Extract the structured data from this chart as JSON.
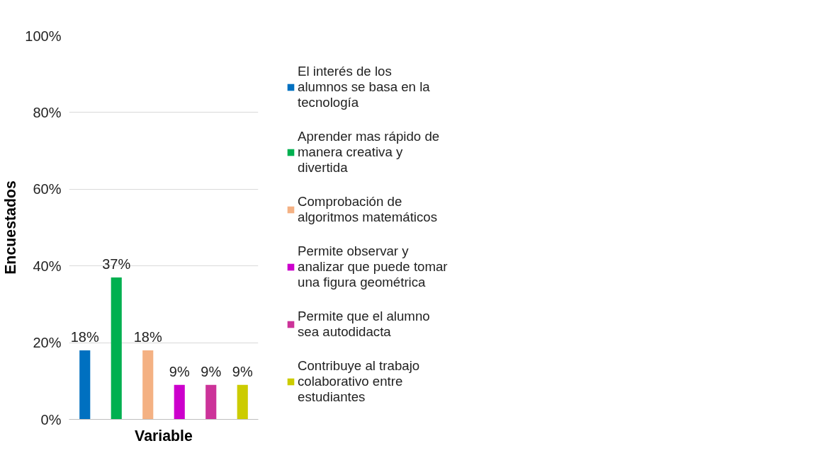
{
  "chart_data": {
    "type": "bar",
    "xlabel": "Variable",
    "ylabel": "Encuestados",
    "categories": [
      null,
      null,
      null,
      null,
      null,
      null
    ],
    "series": [
      {
        "name": "El interés de los alumnos se basa en la tecnología",
        "color": "#0070c0",
        "values": [
          18,
          null,
          null,
          null,
          null,
          null
        ],
        "value_labels": [
          "18%",
          null,
          null,
          null,
          null,
          null
        ]
      },
      {
        "name": "Aprender mas rápido de manera creativa y divertida",
        "color": "#00b050",
        "values": [
          null,
          37,
          null,
          null,
          null,
          null
        ],
        "value_labels": [
          null,
          "37%",
          null,
          null,
          null,
          null
        ]
      },
      {
        "name": "Comprobación de algoritmos matemáticos",
        "color": "#f4b183",
        "values": [
          null,
          null,
          18,
          null,
          null,
          null
        ],
        "value_labels": [
          null,
          null,
          "18%",
          null,
          null,
          null
        ]
      },
      {
        "name": "Permite observar y analizar que puede tomar una figura geométrica",
        "color": "#cc00cc",
        "values": [
          null,
          null,
          null,
          9,
          null,
          null
        ],
        "value_labels": [
          null,
          null,
          null,
          "9%",
          null,
          null
        ]
      },
      {
        "name": "Permite que el alumno sea autodidacta",
        "color": "#cc3399",
        "values": [
          null,
          null,
          null,
          null,
          9,
          null
        ],
        "value_labels": [
          null,
          null,
          null,
          null,
          "9%",
          null
        ]
      },
      {
        "name": "Contribuye al trabajo colaborativo entre estudiantes",
        "color": "#cccc00",
        "values": [
          null,
          null,
          null,
          null,
          null,
          9
        ],
        "value_labels": [
          null,
          null,
          null,
          null,
          null,
          "9%"
        ]
      }
    ],
    "ylim": [
      0,
      100
    ],
    "yticks": [
      {
        "value": 0,
        "label": "0%"
      },
      {
        "value": 20,
        "label": "20%"
      },
      {
        "value": 40,
        "label": "40%"
      },
      {
        "value": 60,
        "label": "60%"
      },
      {
        "value": 80,
        "label": "80%"
      },
      {
        "value": 100,
        "label": "100%"
      }
    ],
    "grid": "y",
    "legend": "right"
  }
}
